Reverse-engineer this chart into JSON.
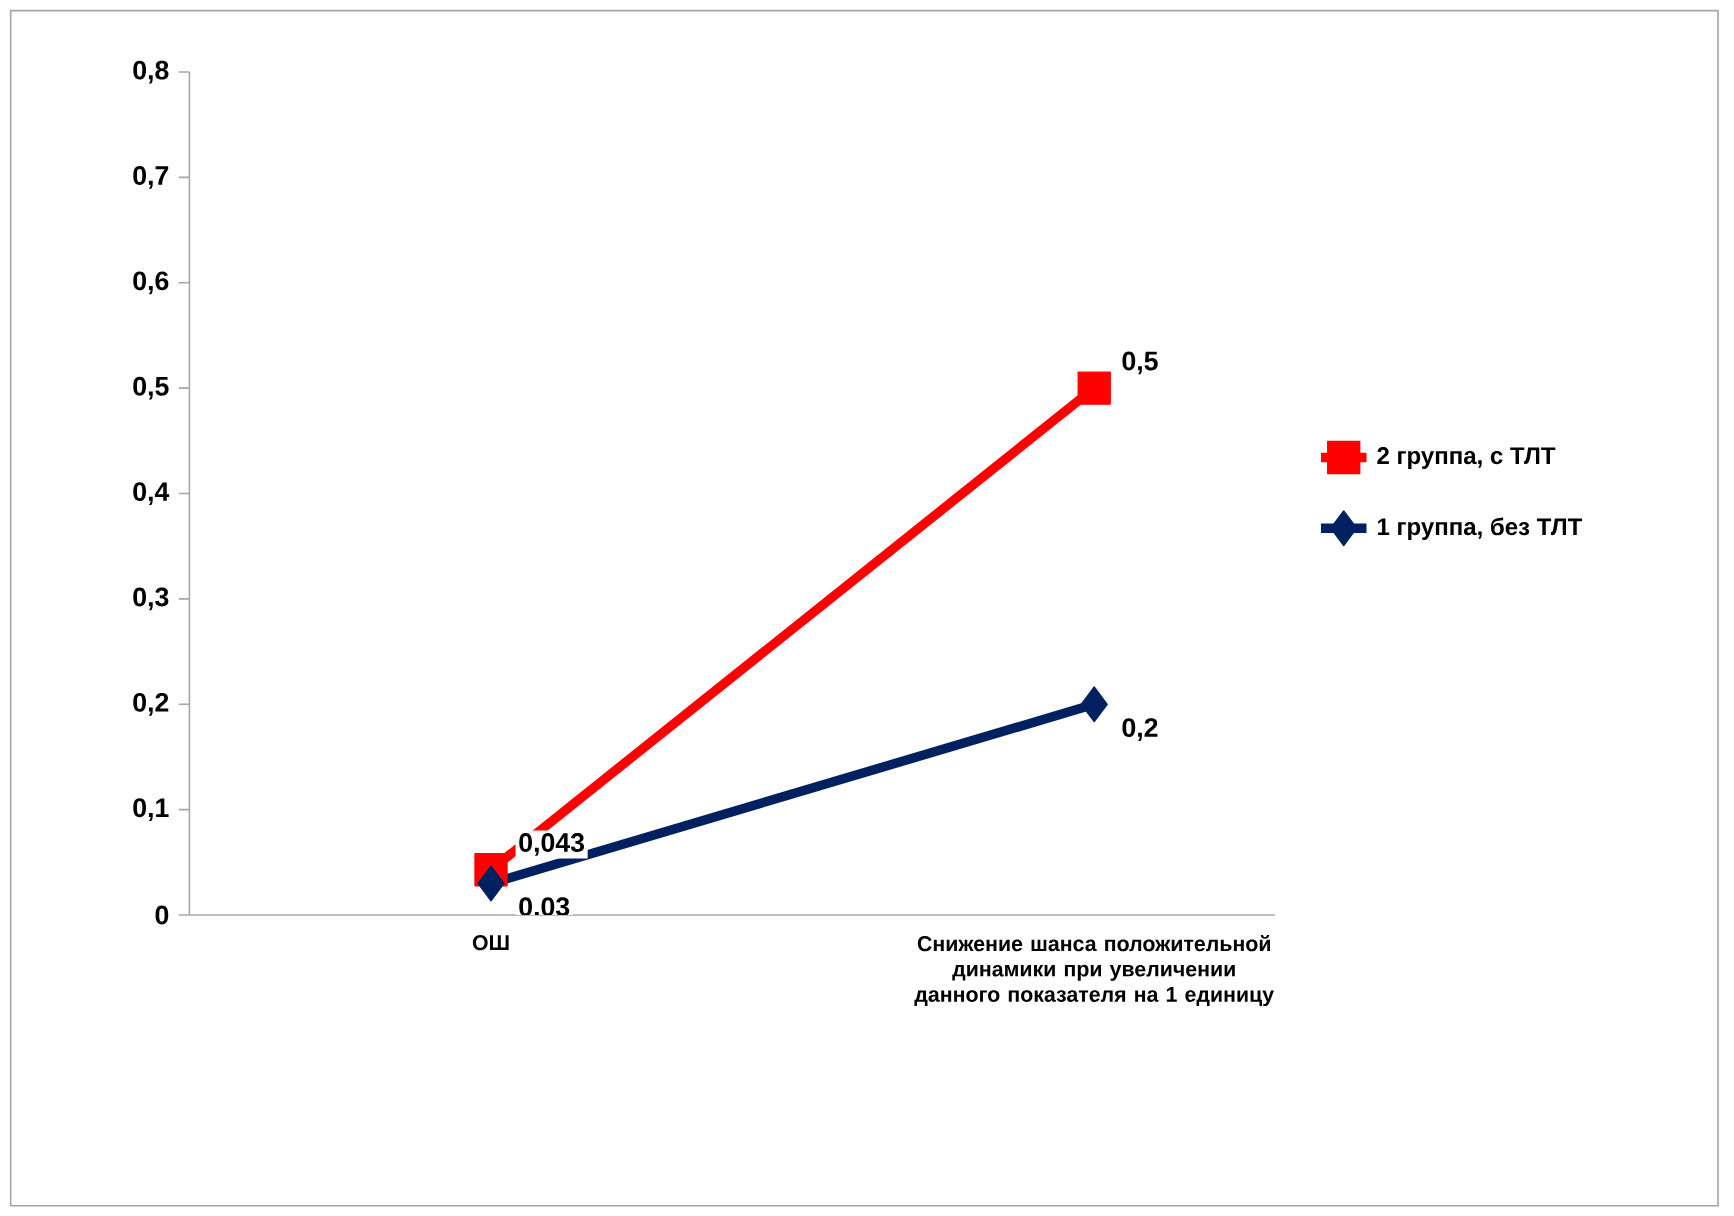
{
  "chart_data": {
    "type": "line",
    "categories": [
      "ОШ",
      "Снижение шанса положительной динамики при увеличении данного показателя на 1 единицу"
    ],
    "series": [
      {
        "name": "2 группа, с ТЛТ",
        "color": "#ff0000",
        "marker": "square",
        "values": [
          0.043,
          0.5
        ],
        "value_labels": [
          "0,043",
          "0,5"
        ]
      },
      {
        "name": "1 группа, без ТЛТ",
        "color": "#002060",
        "marker": "diamond",
        "values": [
          0.03,
          0.2
        ],
        "value_labels": [
          "0,03",
          "0,2"
        ]
      }
    ],
    "ylim": [
      0,
      0.8
    ],
    "yticks": [
      {
        "value": 0,
        "label": "0"
      },
      {
        "value": 0.1,
        "label": "0,1"
      },
      {
        "value": 0.2,
        "label": "0,2"
      },
      {
        "value": 0.3,
        "label": "0,3"
      },
      {
        "value": 0.4,
        "label": "0,4"
      },
      {
        "value": 0.5,
        "label": "0,5"
      },
      {
        "value": 0.6,
        "label": "0,6"
      },
      {
        "value": 0.7,
        "label": "0,7"
      },
      {
        "value": 0.8,
        "label": "0,8"
      }
    ],
    "legend": "right",
    "grid": false
  }
}
